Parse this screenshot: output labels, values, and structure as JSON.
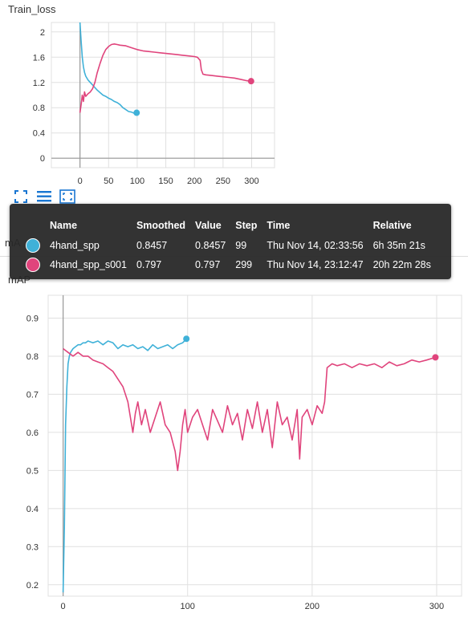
{
  "charts": {
    "loss_title": "Train_loss",
    "map_title": "mAP",
    "map_title_partial": "mA"
  },
  "toolbar": {
    "icons": [
      "fit-domain-icon",
      "toggle-log-scale-icon",
      "expand-chart-icon"
    ]
  },
  "tooltip": {
    "headers": [
      "Name",
      "Smoothed",
      "Value",
      "Step",
      "Time",
      "Relative"
    ],
    "rows": [
      {
        "name": "4hand_spp",
        "smoothed": "0.8457",
        "value": "0.8457",
        "step": "99",
        "time": "Thu Nov 14, 02:33:56",
        "relative": "6h 35m 21s",
        "color": "#3fb1d8"
      },
      {
        "name": "4hand_spp_s001",
        "smoothed": "0.797",
        "value": "0.797",
        "step": "299",
        "time": "Thu Nov 14, 23:12:47",
        "relative": "20h 22m 28s",
        "color": "#e0447c"
      }
    ]
  },
  "colors": {
    "series_blue": "#3fb1d8",
    "series_pink": "#e0447c",
    "grid": "#e0e0e0",
    "axis": "#999999"
  },
  "chart_data": [
    {
      "type": "line",
      "title": "Train_loss",
      "xlim": [
        -50,
        340
      ],
      "ylim": [
        -0.15,
        2.15
      ],
      "xticks": [
        0,
        50,
        100,
        150,
        200,
        250,
        300
      ],
      "yticks": [
        0,
        0.4,
        0.8,
        1.2,
        1.6,
        2
      ],
      "ytick_labels": [
        "0",
        "0.4",
        "0.8",
        "1.2",
        "1.6",
        "2"
      ],
      "grid": true,
      "series": [
        {
          "name": "4hand_spp",
          "color": "#3fb1d8",
          "x": [
            0,
            2,
            4,
            6,
            8,
            10,
            14,
            18,
            22,
            26,
            30,
            35,
            40,
            45,
            50,
            55,
            60,
            65,
            70,
            75,
            80,
            85,
            90,
            95,
            99
          ],
          "y": [
            2.15,
            1.85,
            1.6,
            1.45,
            1.36,
            1.3,
            1.24,
            1.2,
            1.16,
            1.12,
            1.08,
            1.04,
            1.0,
            0.98,
            0.95,
            0.93,
            0.9,
            0.88,
            0.85,
            0.8,
            0.77,
            0.74,
            0.73,
            0.71,
            0.72
          ]
        },
        {
          "name": "4hand_spp_s001",
          "color": "#e0447c",
          "x": [
            0,
            2,
            4,
            6,
            8,
            10,
            14,
            18,
            22,
            26,
            30,
            35,
            40,
            45,
            50,
            55,
            60,
            65,
            70,
            80,
            90,
            100,
            110,
            120,
            130,
            140,
            150,
            160,
            170,
            180,
            190,
            200,
            205,
            210,
            212,
            215,
            220,
            230,
            240,
            250,
            260,
            270,
            280,
            290,
            299
          ],
          "y": [
            0.72,
            0.85,
            1.0,
            0.9,
            1.05,
            0.98,
            1.02,
            1.05,
            1.1,
            1.2,
            1.35,
            1.5,
            1.63,
            1.72,
            1.77,
            1.8,
            1.81,
            1.8,
            1.79,
            1.78,
            1.75,
            1.72,
            1.7,
            1.69,
            1.68,
            1.67,
            1.66,
            1.65,
            1.64,
            1.63,
            1.62,
            1.61,
            1.6,
            1.55,
            1.4,
            1.33,
            1.32,
            1.31,
            1.3,
            1.29,
            1.28,
            1.27,
            1.25,
            1.23,
            1.22
          ]
        }
      ]
    },
    {
      "type": "line",
      "title": "mAP",
      "xlim": [
        -12,
        320
      ],
      "ylim": [
        0.17,
        0.96
      ],
      "xticks": [
        0,
        100,
        200,
        300
      ],
      "yticks": [
        0.2,
        0.3,
        0.4,
        0.5,
        0.6,
        0.7,
        0.8,
        0.9
      ],
      "ytick_labels": [
        "0.2",
        "0.3",
        "0.4",
        "0.5",
        "0.6",
        "0.7",
        "0.8",
        "0.9"
      ],
      "grid": true,
      "series": [
        {
          "name": "4hand_spp",
          "color": "#3fb1d8",
          "x": [
            0,
            1,
            2,
            3,
            4,
            5,
            6,
            8,
            10,
            12,
            14,
            16,
            18,
            20,
            24,
            28,
            32,
            36,
            40,
            44,
            48,
            52,
            56,
            60,
            64,
            68,
            72,
            76,
            80,
            84,
            88,
            92,
            96,
            99
          ],
          "y": [
            0.18,
            0.35,
            0.62,
            0.72,
            0.78,
            0.8,
            0.81,
            0.82,
            0.825,
            0.83,
            0.83,
            0.835,
            0.835,
            0.84,
            0.835,
            0.84,
            0.83,
            0.84,
            0.835,
            0.82,
            0.83,
            0.825,
            0.83,
            0.82,
            0.825,
            0.815,
            0.83,
            0.82,
            0.825,
            0.83,
            0.82,
            0.83,
            0.835,
            0.8457
          ]
        },
        {
          "name": "4hand_spp_s001",
          "color": "#e0447c",
          "x": [
            0,
            4,
            8,
            12,
            16,
            20,
            24,
            28,
            32,
            36,
            40,
            44,
            48,
            50,
            52,
            54,
            56,
            58,
            60,
            63,
            66,
            70,
            74,
            78,
            82,
            86,
            90,
            92,
            94,
            96,
            98,
            100,
            104,
            108,
            112,
            116,
            120,
            124,
            128,
            132,
            136,
            140,
            144,
            148,
            152,
            156,
            160,
            164,
            168,
            172,
            176,
            180,
            184,
            188,
            190,
            192,
            196,
            200,
            204,
            208,
            210,
            212,
            216,
            220,
            226,
            232,
            238,
            244,
            250,
            256,
            262,
            268,
            274,
            280,
            286,
            292,
            299
          ],
          "y": [
            0.82,
            0.81,
            0.8,
            0.81,
            0.8,
            0.8,
            0.79,
            0.785,
            0.78,
            0.77,
            0.76,
            0.74,
            0.72,
            0.7,
            0.68,
            0.64,
            0.6,
            0.65,
            0.68,
            0.62,
            0.66,
            0.6,
            0.64,
            0.68,
            0.62,
            0.6,
            0.55,
            0.5,
            0.55,
            0.62,
            0.66,
            0.6,
            0.64,
            0.66,
            0.62,
            0.58,
            0.66,
            0.63,
            0.6,
            0.67,
            0.62,
            0.65,
            0.58,
            0.66,
            0.61,
            0.68,
            0.6,
            0.66,
            0.56,
            0.68,
            0.62,
            0.64,
            0.58,
            0.66,
            0.53,
            0.64,
            0.66,
            0.62,
            0.67,
            0.65,
            0.68,
            0.77,
            0.78,
            0.775,
            0.78,
            0.77,
            0.78,
            0.775,
            0.78,
            0.77,
            0.785,
            0.775,
            0.78,
            0.79,
            0.785,
            0.79,
            0.797
          ]
        }
      ]
    }
  ]
}
